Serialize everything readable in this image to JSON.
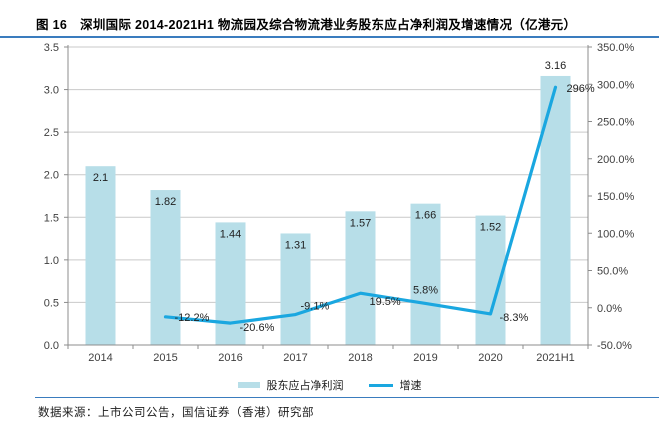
{
  "header": {
    "figure_label": "图 16",
    "title": "深圳国际 2014-2021H1 物流园及综合物流港业务股东应占净利润及增速情况（亿港元）"
  },
  "legend": {
    "bar_label": "股东应占净利润",
    "line_label": "增速"
  },
  "footer": {
    "source": "数据来源：上市公司公告，国信证券（香港）研究部"
  },
  "colors": {
    "bar": "#B7DEE8",
    "line": "#1AA7E0",
    "accent_rule": "#3A7CBE",
    "gridline": "#C9C9C9",
    "axis": "#8C8C8C",
    "tick_label": "#3F3F3F",
    "data_label": "#1F1F1F"
  },
  "chart_data": {
    "type": "bar+line combo",
    "categories": [
      "2014",
      "2015",
      "2016",
      "2017",
      "2018",
      "2019",
      "2020",
      "2021H1"
    ],
    "series": [
      {
        "name": "股东应占净利润",
        "type": "bar",
        "axis": "left",
        "values": [
          2.1,
          1.82,
          1.44,
          1.31,
          1.57,
          1.66,
          1.52,
          3.16
        ],
        "labels": [
          "2.1",
          "1.82",
          "1.44",
          "1.31",
          "1.57",
          "1.66",
          "1.52",
          "3.16"
        ]
      },
      {
        "name": "增速",
        "type": "line",
        "axis": "right",
        "values": [
          null,
          -12.2,
          -20.6,
          -9.1,
          19.5,
          5.8,
          -8.3,
          296
        ],
        "labels": [
          null,
          "-12.2%",
          "-20.6%",
          "-9.1%",
          "19.5%",
          "5.8%",
          "-8.3%",
          "296%"
        ]
      }
    ],
    "left_axis": {
      "min": 0,
      "max": 3.5,
      "ticks": [
        "0.0",
        "0.5",
        "1.0",
        "1.5",
        "2.0",
        "2.5",
        "3.0",
        "3.5"
      ]
    },
    "right_axis": {
      "min": -50,
      "max": 350,
      "ticks": [
        "-50.0%",
        "0.0%",
        "50.0%",
        "100.0%",
        "150.0%",
        "200.0%",
        "250.0%",
        "300.0%",
        "350.0%"
      ]
    },
    "grid": true,
    "legend_position": "bottom"
  }
}
